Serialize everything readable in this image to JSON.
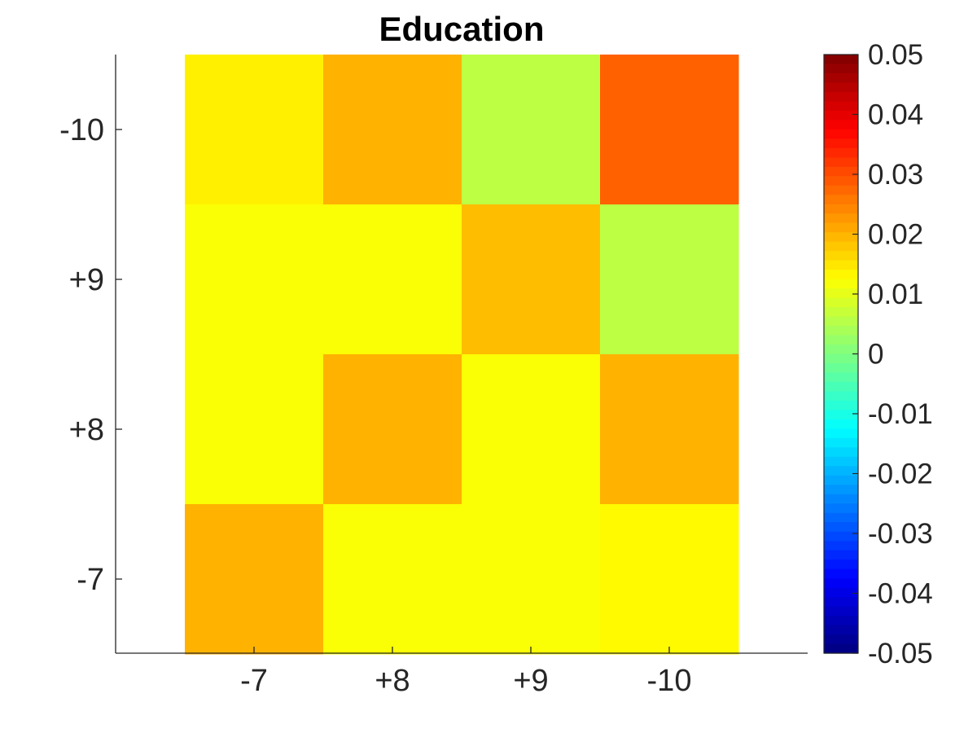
{
  "chart_data": {
    "type": "heatmap",
    "title": "Education",
    "xlabel": "",
    "ylabel": "",
    "x_categories": [
      "-7",
      "+8",
      "+9",
      "-10"
    ],
    "y_categories": [
      "-10",
      "+9",
      "+8",
      "-7"
    ],
    "values": [
      [
        0.014,
        0.02,
        0.006,
        0.028
      ],
      [
        0.012,
        0.012,
        0.019,
        0.006
      ],
      [
        0.012,
        0.02,
        0.012,
        0.02
      ],
      [
        0.02,
        0.012,
        0.012,
        0.013
      ]
    ],
    "colormap": "jet",
    "clim": [
      -0.05,
      0.05
    ],
    "colorbar": {
      "placement": "right",
      "ticks": [
        0.05,
        0.04,
        0.03,
        0.02,
        0.01,
        0,
        -0.01,
        -0.02,
        -0.03,
        -0.04,
        -0.05
      ],
      "tick_labels": [
        "0.05",
        "0.04",
        "0.03",
        "0.02",
        "0.01",
        "0",
        "-0.01",
        "-0.02",
        "-0.03",
        "-0.04",
        "-0.05"
      ]
    },
    "grid": false
  }
}
